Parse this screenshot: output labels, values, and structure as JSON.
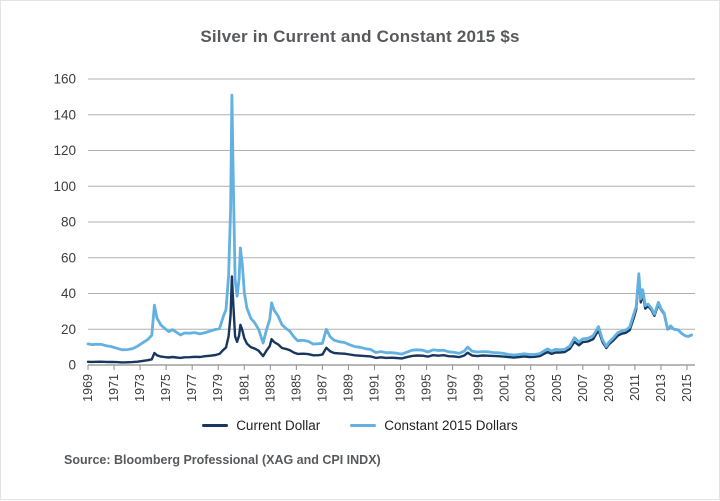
{
  "page": {
    "title": "Silver in Current and Constant 2015 $s",
    "source_note": "Source: Bloomberg Professional (XAG and CPI INDX)"
  },
  "chart_data": {
    "type": "line",
    "title": "Silver in Current and Constant 2015 $s",
    "xlabel": "",
    "ylabel": "",
    "x_unit": "year",
    "y_unit": "US dollars per ounce",
    "xlim": [
      1969,
      2015.5
    ],
    "ylim": [
      0,
      160
    ],
    "x_ticks": [
      1969,
      1971,
      1973,
      1975,
      1977,
      1979,
      1981,
      1983,
      1985,
      1987,
      1989,
      1991,
      1993,
      1995,
      1997,
      1999,
      2001,
      2003,
      2005,
      2007,
      2009,
      2011,
      2013,
      2015
    ],
    "y_ticks": [
      0,
      20,
      40,
      60,
      80,
      100,
      120,
      140,
      160
    ],
    "grid": "horizontal",
    "legend_position": "bottom",
    "grid_color": "#b0b0b0",
    "axis_color": "#8c8c8c",
    "tick_label_color": "#3d3d3d",
    "series": [
      {
        "name": "Current Dollar",
        "color": "#17375E",
        "column": 1,
        "width": 2.4
      },
      {
        "name": "Constant 2015 Dollars",
        "color": "#63B1E1",
        "column": 2,
        "width": 2.8
      }
    ],
    "rows": [
      [
        1969.0,
        1.8,
        11.8
      ],
      [
        1969.3,
        1.75,
        11.4
      ],
      [
        1969.6,
        1.8,
        11.6
      ],
      [
        1970.0,
        1.85,
        11.6
      ],
      [
        1970.4,
        1.75,
        10.8
      ],
      [
        1970.8,
        1.7,
        10.3
      ],
      [
        1971.2,
        1.6,
        9.4
      ],
      [
        1971.6,
        1.45,
        8.5
      ],
      [
        1972.0,
        1.5,
        8.6
      ],
      [
        1972.4,
        1.6,
        9.1
      ],
      [
        1972.8,
        1.85,
        10.5
      ],
      [
        1973.2,
        2.3,
        12.4
      ],
      [
        1973.6,
        2.7,
        14.3
      ],
      [
        1973.9,
        3.2,
        16.6
      ],
      [
        1974.1,
        6.7,
        33.5
      ],
      [
        1974.3,
        5.4,
        26.2
      ],
      [
        1974.6,
        4.7,
        22.4
      ],
      [
        1974.9,
        4.4,
        20.5
      ],
      [
        1975.2,
        4.2,
        18.7
      ],
      [
        1975.5,
        4.5,
        19.8
      ],
      [
        1975.8,
        4.2,
        18.3
      ],
      [
        1976.1,
        4.0,
        16.8
      ],
      [
        1976.4,
        4.3,
        17.9
      ],
      [
        1976.8,
        4.35,
        17.8
      ],
      [
        1977.2,
        4.6,
        18.1
      ],
      [
        1977.6,
        4.5,
        17.4
      ],
      [
        1978.0,
        4.9,
        18.1
      ],
      [
        1978.4,
        5.2,
        19.0
      ],
      [
        1978.8,
        5.6,
        19.9
      ],
      [
        1979.1,
        6.2,
        20.3
      ],
      [
        1979.4,
        8.5,
        27.3
      ],
      [
        1979.6,
        9.8,
        31.0
      ],
      [
        1979.8,
        16.0,
        50.0
      ],
      [
        1979.95,
        28.0,
        87.0
      ],
      [
        1980.05,
        49.5,
        151.0
      ],
      [
        1980.15,
        35.0,
        106.0
      ],
      [
        1980.3,
        16.0,
        47.8
      ],
      [
        1980.45,
        13.0,
        38.5
      ],
      [
        1980.6,
        16.5,
        48.3
      ],
      [
        1980.7,
        22.5,
        65.5
      ],
      [
        1980.85,
        19.5,
        56.4
      ],
      [
        1981.0,
        15.0,
        40.5
      ],
      [
        1981.2,
        12.0,
        31.9
      ],
      [
        1981.5,
        10.0,
        26.1
      ],
      [
        1981.8,
        9.2,
        23.6
      ],
      [
        1982.1,
        8.0,
        20.0
      ],
      [
        1982.45,
        5.0,
        12.3
      ],
      [
        1982.7,
        8.0,
        19.5
      ],
      [
        1982.95,
        10.5,
        25.4
      ],
      [
        1983.1,
        14.5,
        34.8
      ],
      [
        1983.3,
        12.8,
        30.6
      ],
      [
        1983.6,
        11.5,
        27.4
      ],
      [
        1983.9,
        9.5,
        22.5
      ],
      [
        1984.2,
        9.0,
        20.5
      ],
      [
        1984.5,
        8.3,
        18.9
      ],
      [
        1984.8,
        7.0,
        15.9
      ],
      [
        1985.1,
        6.2,
        13.6
      ],
      [
        1985.5,
        6.3,
        13.8
      ],
      [
        1985.9,
        6.1,
        13.3
      ],
      [
        1986.3,
        5.4,
        11.7
      ],
      [
        1986.7,
        5.5,
        11.9
      ],
      [
        1987.0,
        5.8,
        12.1
      ],
      [
        1987.3,
        9.6,
        20.0
      ],
      [
        1987.6,
        7.6,
        15.8
      ],
      [
        1987.9,
        6.7,
        13.9
      ],
      [
        1988.3,
        6.5,
        13.0
      ],
      [
        1988.7,
        6.3,
        12.6
      ],
      [
        1989.1,
        5.9,
        11.3
      ],
      [
        1989.5,
        5.4,
        10.3
      ],
      [
        1989.9,
        5.2,
        9.9
      ],
      [
        1990.3,
        5.0,
        9.1
      ],
      [
        1990.7,
        4.8,
        8.7
      ],
      [
        1991.1,
        4.0,
        7.0
      ],
      [
        1991.5,
        4.3,
        7.5
      ],
      [
        1991.9,
        4.0,
        6.9
      ],
      [
        1992.3,
        4.1,
        6.9
      ],
      [
        1992.7,
        3.9,
        6.6
      ],
      [
        1993.1,
        3.7,
        6.1
      ],
      [
        1993.5,
        4.4,
        7.2
      ],
      [
        1993.9,
        5.1,
        8.3
      ],
      [
        1994.3,
        5.3,
        8.5
      ],
      [
        1994.7,
        5.2,
        8.3
      ],
      [
        1995.1,
        4.7,
        7.3
      ],
      [
        1995.5,
        5.5,
        8.5
      ],
      [
        1995.9,
        5.2,
        8.1
      ],
      [
        1996.3,
        5.5,
        8.3
      ],
      [
        1996.7,
        4.9,
        7.4
      ],
      [
        1997.1,
        4.8,
        7.1
      ],
      [
        1997.5,
        4.4,
        6.5
      ],
      [
        1997.9,
        5.3,
        7.8
      ],
      [
        1998.15,
        6.9,
        10.0
      ],
      [
        1998.5,
        5.3,
        7.7
      ],
      [
        1998.9,
        5.0,
        7.3
      ],
      [
        1999.3,
        5.3,
        7.5
      ],
      [
        1999.7,
        5.2,
        7.4
      ],
      [
        2000.1,
        5.1,
        7.0
      ],
      [
        2000.5,
        4.9,
        6.8
      ],
      [
        2000.9,
        4.7,
        6.5
      ],
      [
        2001.3,
        4.4,
        5.9
      ],
      [
        2001.7,
        4.2,
        5.6
      ],
      [
        2002.1,
        4.5,
        5.9
      ],
      [
        2002.5,
        4.8,
        6.3
      ],
      [
        2002.9,
        4.5,
        5.9
      ],
      [
        2003.3,
        4.6,
        5.9
      ],
      [
        2003.7,
        5.0,
        6.4
      ],
      [
        2004.0,
        6.2,
        7.8
      ],
      [
        2004.3,
        7.2,
        9.0
      ],
      [
        2004.6,
        6.2,
        7.8
      ],
      [
        2004.9,
        7.0,
        8.8
      ],
      [
        2005.2,
        7.0,
        8.5
      ],
      [
        2005.6,
        7.2,
        8.7
      ],
      [
        2006.0,
        9.0,
        10.6
      ],
      [
        2006.35,
        13.0,
        15.3
      ],
      [
        2006.7,
        11.0,
        12.9
      ],
      [
        2007.0,
        12.8,
        14.6
      ],
      [
        2007.4,
        13.2,
        15.0
      ],
      [
        2007.8,
        14.5,
        16.4
      ],
      [
        2008.2,
        19.5,
        21.5
      ],
      [
        2008.5,
        13.0,
        14.3
      ],
      [
        2008.8,
        9.5,
        10.4
      ],
      [
        2009.0,
        11.5,
        12.7
      ],
      [
        2009.3,
        13.5,
        14.9
      ],
      [
        2009.7,
        16.5,
        18.2
      ],
      [
        2010.0,
        17.5,
        19.0
      ],
      [
        2010.3,
        18.0,
        19.6
      ],
      [
        2010.6,
        19.5,
        21.2
      ],
      [
        2010.9,
        26.0,
        28.2
      ],
      [
        2011.1,
        31.0,
        32.7
      ],
      [
        2011.3,
        48.5,
        51.1
      ],
      [
        2011.45,
        35.0,
        36.9
      ],
      [
        2011.6,
        40.0,
        42.1
      ],
      [
        2011.8,
        31.5,
        33.2
      ],
      [
        2012.0,
        33.0,
        34.1
      ],
      [
        2012.25,
        31.0,
        32.0
      ],
      [
        2012.5,
        27.5,
        28.4
      ],
      [
        2012.8,
        34.0,
        35.1
      ],
      [
        2013.0,
        31.0,
        31.5
      ],
      [
        2013.25,
        28.5,
        29.0
      ],
      [
        2013.5,
        20.0,
        20.3
      ],
      [
        2013.75,
        21.5,
        21.9
      ],
      [
        2014.0,
        20.0,
        20.0
      ],
      [
        2014.3,
        19.7,
        19.7
      ],
      [
        2014.6,
        17.5,
        17.6
      ],
      [
        2014.9,
        16.2,
        16.2
      ],
      [
        2015.1,
        16.0,
        16.0
      ],
      [
        2015.35,
        16.8,
        16.8
      ]
    ]
  }
}
